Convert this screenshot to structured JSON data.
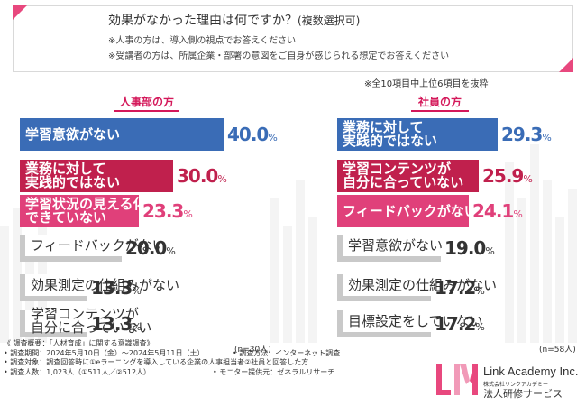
{
  "header": {
    "title": "効果がなかった理由は何ですか？",
    "title_sub": "(複数選択可)",
    "note1": "※人事の方は、導入側の視点でお答えください",
    "note2": "※受講者の方は、所属企業・部署の意図をご自身が感じられる想定でお答えください"
  },
  "top_note": "※全10項目中上位6項目を抜粋",
  "colors": {
    "blue": "#3a6cb6",
    "crimson": "#c0204d",
    "pink": "#e0407a",
    "gray": "#c9c9c9",
    "accent": "#e8487e"
  },
  "chart_data": [
    {
      "type": "bar",
      "orientation": "horizontal",
      "title": "人事部の方",
      "categories": [
        "学習意欲がない",
        "業務に対して実践的ではない",
        "学習状況の見える化ができていない",
        "フィードバックがない",
        "効果測定の仕組みがない",
        "学習コンテンツが自分に合っていない"
      ],
      "label_lines": [
        [
          "学習意欲がない"
        ],
        [
          "業務に対して",
          "実践的ではない"
        ],
        [
          "学習状況の見える化が",
          "できていない"
        ],
        [
          "フィードバックがない"
        ],
        [
          "効果測定の仕組みがない"
        ],
        [
          "学習コンテンツが",
          "自分に合っていない"
        ]
      ],
      "values": [
        40.0,
        30.0,
        23.3,
        20.0,
        13.3,
        13.3
      ],
      "value_labels": [
        "40.0",
        "30.0",
        "23.3",
        "20.0",
        "13.3",
        "13.3"
      ],
      "unit": "%",
      "bar_colors": [
        "blue",
        "crimson",
        "pink",
        "gray",
        "gray",
        "gray"
      ],
      "n": "(n=30人)"
    },
    {
      "type": "bar",
      "orientation": "horizontal",
      "title": "社員の方",
      "categories": [
        "業務に対して実践的ではない",
        "学習コンテンツが自分に合っていない",
        "フィードバックがない",
        "学習意欲がない",
        "効果測定の仕組みがない",
        "目標設定をしていない"
      ],
      "label_lines": [
        [
          "業務に対して",
          "実践的ではない"
        ],
        [
          "学習コンテンツが",
          "自分に合っていない"
        ],
        [
          "フィードバックがない"
        ],
        [
          "学習意欲がない"
        ],
        [
          "効果測定の仕組みがない"
        ],
        [
          "目標設定をしていない"
        ]
      ],
      "values": [
        29.3,
        25.9,
        24.1,
        19.0,
        17.2,
        17.2
      ],
      "value_labels": [
        "29.3",
        "25.9",
        "24.1",
        "19.0",
        "17.2",
        "17.2"
      ],
      "unit": "%",
      "bar_colors": [
        "blue",
        "crimson",
        "pink",
        "gray",
        "gray",
        "gray"
      ],
      "n": "(n=58人)"
    }
  ],
  "footer": {
    "line1": "《 調査概要：「人材育成」に関する意識調査》",
    "line2": "• 調査期間：2024年5月10日（金）〜2024年5月11日（土）",
    "line2b": "• 調査方法：インターネット調査",
    "line3": "• 調査対象：調査回答時に①eラーニングを導入している企業の人事担当者②社員と回答した方",
    "line4": "• 調査人数：1,023人（①511人／②512人）",
    "line4b": "• モニター提供元：ゼネラルリサーチ"
  },
  "logo": {
    "name": "Link Academy Inc.",
    "corp": "株式会社リンクアカデミー",
    "service": "法人研修サービス"
  }
}
